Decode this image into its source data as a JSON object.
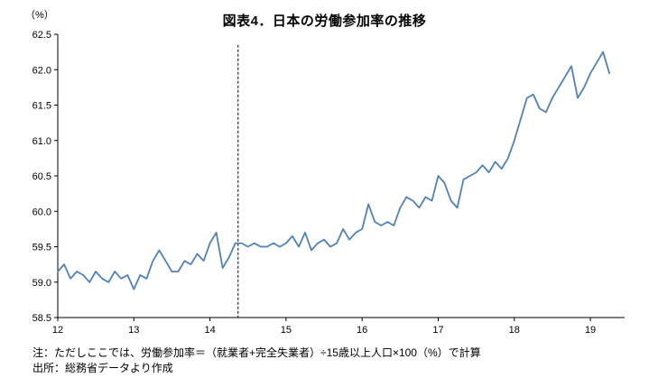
{
  "title": "図表4．日本の労働参加率の推移",
  "y_unit": "（%）",
  "notes": [
    "注：ただしここでは、労働参加率＝（就業者+完全失業者）÷15歳以上人口×100（%）で計算",
    "出所：総務省データより作成"
  ],
  "chart_data": {
    "type": "line",
    "title": "図表4．日本の労働参加率の推移",
    "xlabel": "",
    "ylabel": "（%）",
    "ylim": [
      58.5,
      62.5
    ],
    "xlim": [
      12,
      19.45
    ],
    "y_ticks": [
      58.5,
      59.0,
      59.5,
      60.0,
      60.5,
      61.0,
      61.5,
      62.0,
      62.5
    ],
    "x_ticks": [
      12,
      13,
      14,
      15,
      16,
      17,
      18,
      19
    ],
    "grid": false,
    "legend": "none",
    "line_color": "#4F81BD",
    "series": [
      {
        "name": "労働参加率",
        "color": "#4F81BD",
        "x": [
          12,
          12.083,
          12.167,
          12.25,
          12.333,
          12.417,
          12.5,
          12.583,
          12.667,
          12.75,
          12.833,
          12.917,
          13,
          13.083,
          13.167,
          13.25,
          13.333,
          13.417,
          13.5,
          13.583,
          13.667,
          13.75,
          13.833,
          13.917,
          14,
          14.083,
          14.167,
          14.25,
          14.333,
          14.417,
          14.5,
          14.583,
          14.667,
          14.75,
          14.833,
          14.917,
          15,
          15.083,
          15.167,
          15.25,
          15.333,
          15.417,
          15.5,
          15.583,
          15.667,
          15.75,
          15.833,
          15.917,
          16,
          16.083,
          16.167,
          16.25,
          16.333,
          16.417,
          16.5,
          16.583,
          16.667,
          16.75,
          16.833,
          16.917,
          17,
          17.083,
          17.167,
          17.25,
          17.333,
          17.417,
          17.5,
          17.583,
          17.667,
          17.75,
          17.833,
          17.917,
          18,
          18.083,
          18.167,
          18.25,
          18.333,
          18.417,
          18.5,
          18.583,
          18.667,
          18.75,
          18.833,
          18.917,
          19,
          19.083,
          19.167,
          19.25
        ],
        "y": [
          59.15,
          59.25,
          59.05,
          59.15,
          59.1,
          59.0,
          59.15,
          59.05,
          59.0,
          59.15,
          59.05,
          59.1,
          58.9,
          59.1,
          59.05,
          59.3,
          59.45,
          59.3,
          59.15,
          59.15,
          59.3,
          59.25,
          59.4,
          59.3,
          59.55,
          59.7,
          59.2,
          59.35,
          59.55,
          59.55,
          59.5,
          59.55,
          59.5,
          59.5,
          59.55,
          59.5,
          59.55,
          59.65,
          59.5,
          59.7,
          59.45,
          59.55,
          59.6,
          59.5,
          59.55,
          59.75,
          59.6,
          59.7,
          59.75,
          60.1,
          59.85,
          59.8,
          59.85,
          59.8,
          60.05,
          60.2,
          60.15,
          60.05,
          60.2,
          60.15,
          60.5,
          60.4,
          60.15,
          60.05,
          60.45,
          60.5,
          60.55,
          60.65,
          60.55,
          60.7,
          60.6,
          60.75,
          61.0,
          61.3,
          61.6,
          61.65,
          61.45,
          61.4,
          61.6,
          61.75,
          61.9,
          62.05,
          61.6,
          61.75,
          61.95,
          62.1,
          62.25,
          61.95
        ]
      }
    ],
    "annotations": [
      {
        "type": "vline",
        "x": 14.37,
        "line_style": "dashed",
        "color": "#000000",
        "y_top": 62.35
      }
    ]
  }
}
